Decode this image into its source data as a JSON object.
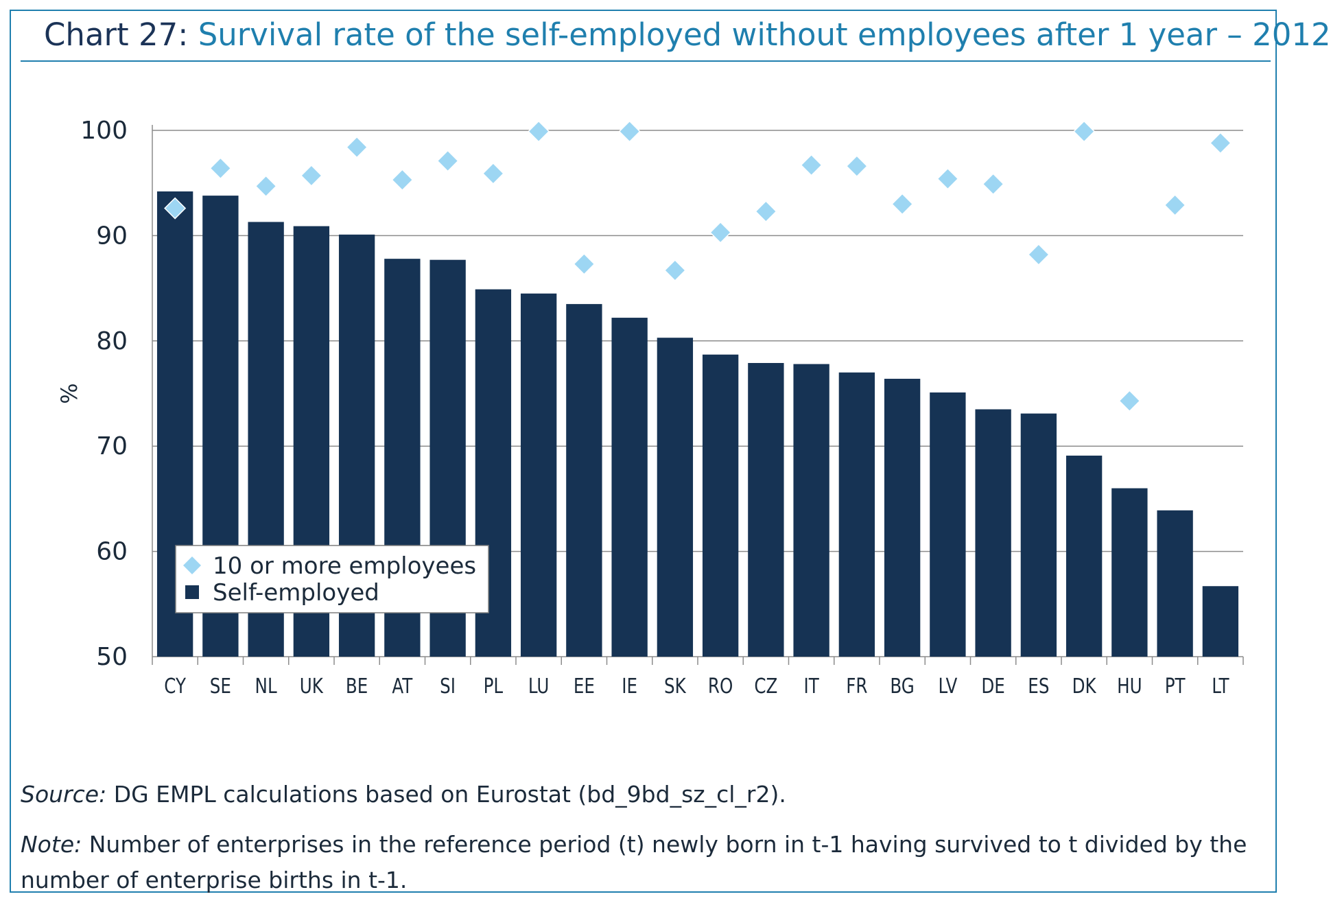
{
  "title": {
    "label": "Chart 27:",
    "text": "Survival rate of the self-employed without employees after 1 year – 2012"
  },
  "footer": {
    "source_label": "Source:",
    "source_text": "DG EMPL calculations based on Eurostat (bd_9bd_sz_cl_r2).",
    "note_label": "Note:",
    "note_text": "Number of enterprises in the reference period (t) newly born in t-1 having survived to t divided by the number of enterprise births in t-1."
  },
  "colors": {
    "bar": "#163354",
    "diamond": "#9dd6f3",
    "grid": "#8c8c8c",
    "accent": "#1f7fae"
  },
  "chart_data": {
    "type": "bar",
    "ylabel": "%",
    "xlabel": "",
    "ylim": [
      50,
      100
    ],
    "yticks": [
      50,
      60,
      70,
      80,
      90,
      100
    ],
    "grid": true,
    "legend_position": "bottom-left",
    "categories": [
      "CY",
      "SE",
      "NL",
      "UK",
      "BE",
      "AT",
      "SI",
      "PL",
      "LU",
      "EE",
      "IE",
      "SK",
      "RO",
      "CZ",
      "IT",
      "FR",
      "BG",
      "LV",
      "DE",
      "ES",
      "DK",
      "HU",
      "PT",
      "LT"
    ],
    "series": [
      {
        "name": "Self-employed",
        "type": "bar",
        "values": [
          94.2,
          93.8,
          91.3,
          90.9,
          90.1,
          87.8,
          87.7,
          84.9,
          84.5,
          83.5,
          82.2,
          80.3,
          78.7,
          77.9,
          77.8,
          77.0,
          76.4,
          75.1,
          73.5,
          73.1,
          69.1,
          66.0,
          63.9,
          56.7
        ]
      },
      {
        "name": "10 or more employees",
        "type": "scatter",
        "values": [
          92.6,
          96.4,
          94.7,
          95.7,
          98.4,
          95.3,
          97.1,
          95.9,
          99.9,
          87.3,
          99.9,
          86.7,
          90.3,
          92.3,
          96.7,
          96.6,
          93.0,
          95.4,
          94.9,
          88.2,
          99.9,
          74.3,
          92.9,
          98.8
        ]
      }
    ]
  }
}
